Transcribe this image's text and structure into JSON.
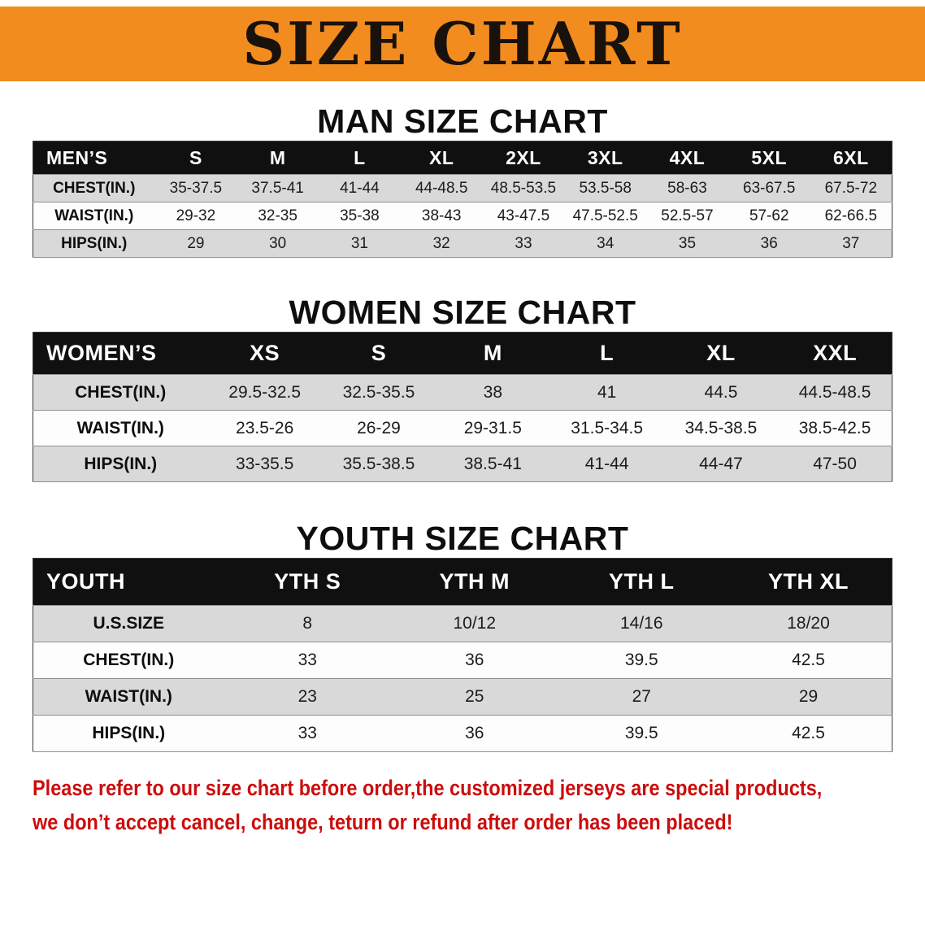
{
  "banner": {
    "title": "SIZE CHART"
  },
  "colors": {
    "banner_bg": "#F28C1E",
    "table_header_bg": "#101010",
    "row_shade": "#D9D9D9",
    "footer_text": "#CB0D0D"
  },
  "sections": {
    "men": {
      "heading": "MAN SIZE CHART",
      "table": {
        "header": [
          "MEN’S",
          "S",
          "M",
          "L",
          "XL",
          "2XL",
          "3XL",
          "4XL",
          "5XL",
          "6XL"
        ],
        "rows": [
          {
            "label": "CHEST(IN.)",
            "values": [
              "35-37.5",
              "37.5-41",
              "41-44",
              "44-48.5",
              "48.5-53.5",
              "53.5-58",
              "58-63",
              "63-67.5",
              "67.5-72"
            ]
          },
          {
            "label": "WAIST(IN.)",
            "values": [
              "29-32",
              "32-35",
              "35-38",
              "38-43",
              "43-47.5",
              "47.5-52.5",
              "52.5-57",
              "57-62",
              "62-66.5"
            ]
          },
          {
            "label": "HIPS(IN.)",
            "values": [
              "29",
              "30",
              "31",
              "32",
              "33",
              "34",
              "35",
              "36",
              "37"
            ]
          }
        ]
      }
    },
    "women": {
      "heading": "WOMEN SIZE CHART",
      "table": {
        "header": [
          "WOMEN’S",
          "XS",
          "S",
          "M",
          "L",
          "XL",
          "XXL"
        ],
        "rows": [
          {
            "label": "CHEST(IN.)",
            "values": [
              "29.5-32.5",
              "32.5-35.5",
              "38",
              "41",
              "44.5",
              "44.5-48.5"
            ]
          },
          {
            "label": "WAIST(IN.)",
            "values": [
              "23.5-26",
              "26-29",
              "29-31.5",
              "31.5-34.5",
              "34.5-38.5",
              "38.5-42.5"
            ]
          },
          {
            "label": "HIPS(IN.)",
            "values": [
              "33-35.5",
              "35.5-38.5",
              "38.5-41",
              "41-44",
              "44-47",
              "47-50"
            ]
          }
        ]
      }
    },
    "youth": {
      "heading": "YOUTH SIZE CHART",
      "table": {
        "header": [
          "YOUTH",
          "YTH S",
          "YTH M",
          "YTH L",
          "YTH XL"
        ],
        "rows": [
          {
            "label": "U.S.SIZE",
            "values": [
              "8",
              "10/12",
              "14/16",
              "18/20"
            ]
          },
          {
            "label": "CHEST(IN.)",
            "values": [
              "33",
              "36",
              "39.5",
              "42.5"
            ]
          },
          {
            "label": "WAIST(IN.)",
            "values": [
              "23",
              "25",
              "27",
              "29"
            ]
          },
          {
            "label": "HIPS(IN.)",
            "values": [
              "33",
              "36",
              "39.5",
              "42.5"
            ]
          }
        ]
      }
    }
  },
  "footer": {
    "lines": [
      "Please refer to our size chart before order,the customized jerseys are special products,",
      "we don’t accept cancel, change, teturn or refund after order has been placed!"
    ]
  }
}
